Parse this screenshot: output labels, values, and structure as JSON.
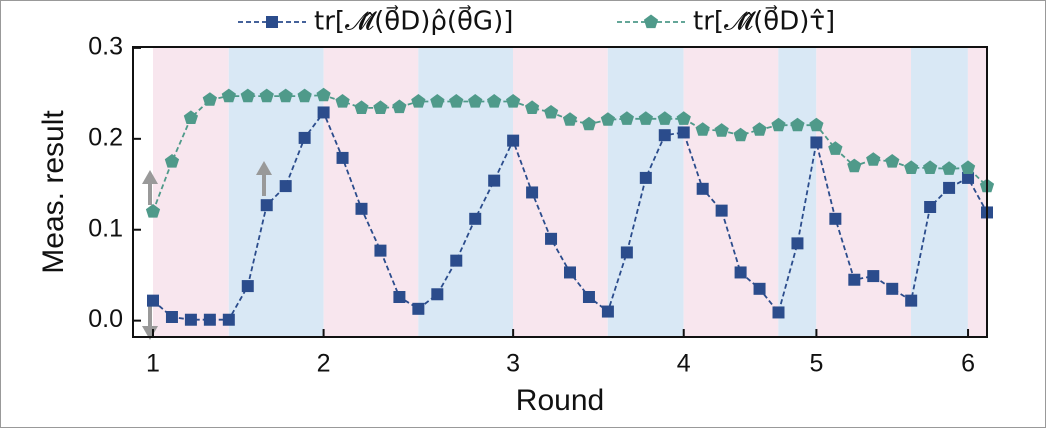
{
  "chart_data": {
    "type": "line",
    "x_label": "Round",
    "y_label": "Meas. result",
    "categories": [
      "1",
      null,
      null,
      null,
      null,
      null,
      null,
      null,
      null,
      "2",
      null,
      null,
      null,
      null,
      null,
      null,
      null,
      null,
      null,
      "3",
      null,
      null,
      null,
      null,
      null,
      null,
      null,
      null,
      "4",
      null,
      null,
      null,
      null,
      null,
      null,
      "5",
      null,
      null,
      null,
      null,
      null,
      null,
      null,
      "6",
      null
    ],
    "ylim": [
      -0.018,
      0.301
    ],
    "yticks": [
      {
        "value": 0,
        "label": "0.0"
      },
      0.1,
      0.2,
      0.3
    ],
    "series": [
      {
        "name": "tr[𝓜̂(θ⃗D)ρ̂(θ⃗G)]",
        "color": "#2b4c8c",
        "marker": "square",
        "values": [
          0.022,
          0.004,
          0.001,
          0.001,
          0.001,
          0.038,
          0.127,
          0.148,
          0.201,
          0.229,
          0.179,
          0.123,
          0.077,
          0.026,
          0.013,
          0.029,
          0.066,
          0.112,
          0.154,
          0.198,
          0.141,
          0.09,
          0.053,
          0.026,
          0.01,
          0.075,
          0.157,
          0.204,
          0.207,
          0.145,
          0.121,
          0.053,
          0.035,
          0.009,
          0.085,
          0.196,
          0.112,
          0.045,
          0.049,
          0.035,
          0.022,
          0.125,
          0.146,
          0.157,
          0.119
        ]
      },
      {
        "name": "tr[𝓜̂(θ⃗D)τ̂]",
        "color": "#4f9a8a",
        "marker": "pentagon",
        "values": [
          0.12,
          0.175,
          0.223,
          0.243,
          0.247,
          0.247,
          0.247,
          0.247,
          0.247,
          0.248,
          0.241,
          0.234,
          0.234,
          0.235,
          0.241,
          0.241,
          0.241,
          0.241,
          0.241,
          0.241,
          0.234,
          0.229,
          0.221,
          0.216,
          0.221,
          0.222,
          0.222,
          0.222,
          0.222,
          0.21,
          0.209,
          0.204,
          0.21,
          0.215,
          0.215,
          0.215,
          0.189,
          0.17,
          0.177,
          0.175,
          0.168,
          0.168,
          0.167,
          0.168,
          0.148
        ]
      }
    ]
  }
}
